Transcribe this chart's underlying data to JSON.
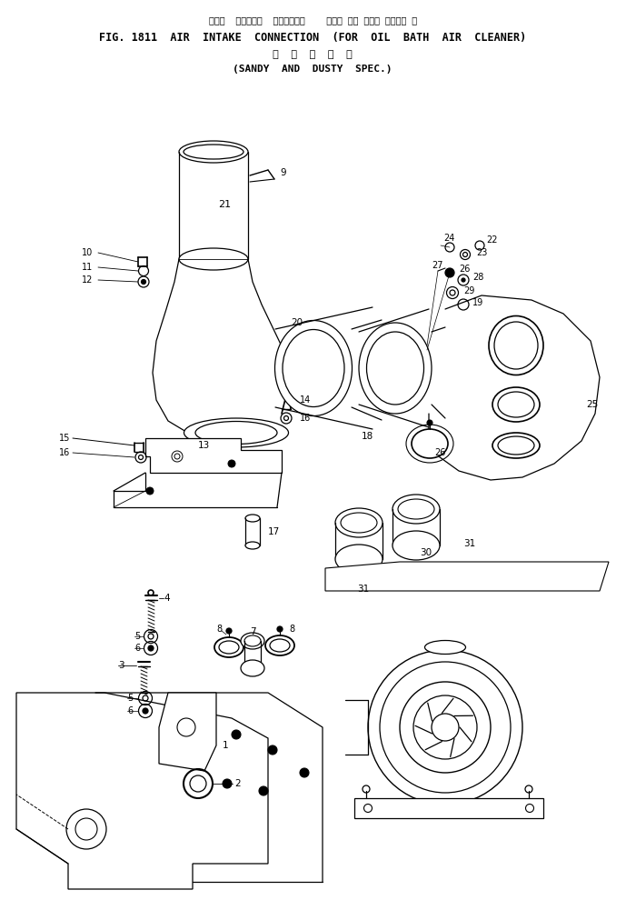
{
  "title_japanese": "エアー  インテーク  コネクション    オイル バス エアー クリーナ 用",
  "title_line2": "FIG. 1811  AIR  INTAKE  CONNECTION  (FOR  OIL  BATH  AIR  CLEANER)",
  "title_japanese2": "砂  塵  地  仕  様",
  "title_line4": "(SANDY  AND  DUSTY  SPEC.)",
  "bg_color": "#ffffff",
  "line_color": "#000000",
  "fig_width": 6.89,
  "fig_height": 10.01,
  "dpi": 100
}
